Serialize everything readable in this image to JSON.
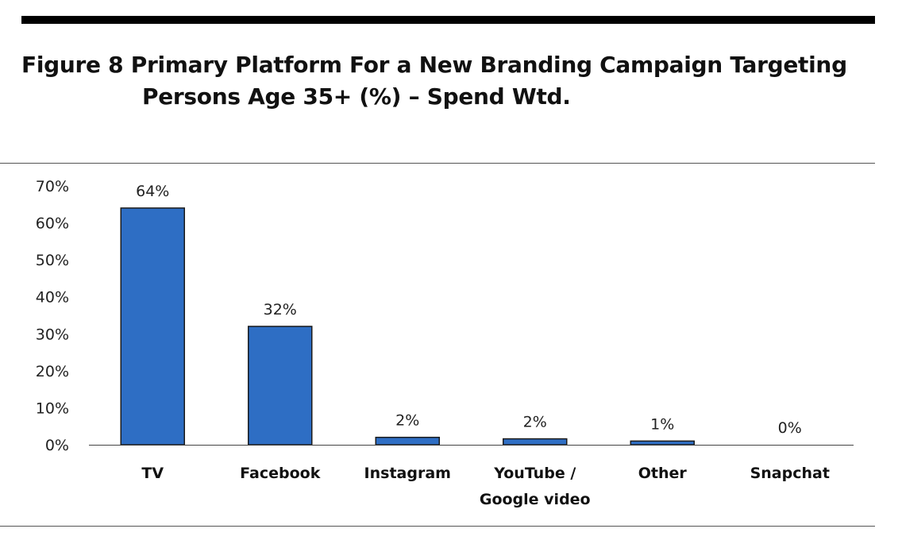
{
  "title_line1": "Figure 8 Primary Platform For a New Branding Campaign Targeting",
  "title_line2": "Persons Age 35+ (%) – Spend Wtd.",
  "chart_data": {
    "type": "bar",
    "title": "Figure 8 Primary Platform For a New Branding Campaign Targeting Persons Age 35+ (%) – Spend Wtd.",
    "categories": [
      [
        "TV"
      ],
      [
        "Facebook"
      ],
      [
        "Instagram"
      ],
      [
        "YouTube /",
        "Google video"
      ],
      [
        "Other"
      ],
      [
        "Snapchat"
      ]
    ],
    "values": [
      64,
      32,
      2,
      1.6,
      1,
      0
    ],
    "data_labels": [
      "64%",
      "32%",
      "2%",
      "2%",
      "1%",
      "0%"
    ],
    "y_ticks": [
      0,
      10,
      20,
      30,
      40,
      50,
      60,
      70
    ],
    "y_tick_labels": [
      "0%",
      "10%",
      "20%",
      "30%",
      "40%",
      "50%",
      "60%",
      "70%"
    ],
    "ylim": [
      0,
      70
    ],
    "xlabel": "",
    "ylabel": "",
    "grid": false,
    "legend": "none",
    "bar_color": "#2E6EC4",
    "bar_edge_color": "#1a1a1a"
  }
}
